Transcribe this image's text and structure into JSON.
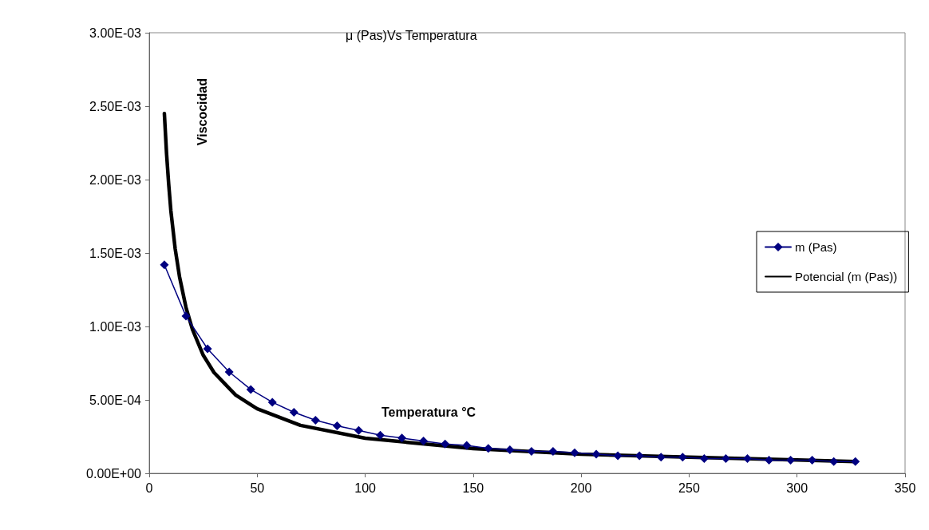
{
  "chart_data": {
    "type": "line",
    "title": "μ (Pas)Vs Temperatura",
    "xlabel": "Temperatura °C",
    "ylabel": "Viscocidad",
    "xlim": [
      0,
      350
    ],
    "xticks": [
      0,
      50,
      100,
      150,
      200,
      250,
      300,
      350
    ],
    "ylim": [
      0,
      0.003
    ],
    "yticks": [
      {
        "value": 0,
        "label": "0.00E+00"
      },
      {
        "value": 0.0005,
        "label": "5.00E-04"
      },
      {
        "value": 0.001,
        "label": "1.00E-03"
      },
      {
        "value": 0.0015,
        "label": "1.50E-03"
      },
      {
        "value": 0.002,
        "label": "2.00E-03"
      },
      {
        "value": 0.0025,
        "label": "2.50E-03"
      },
      {
        "value": 0.003,
        "label": "3.00E-03"
      }
    ],
    "grid": false,
    "legend": "right",
    "marker": "diamond",
    "line_style": "solid",
    "series": [
      {
        "name": "m (Pas)",
        "color": "#000080",
        "x": [
          7,
          17,
          27,
          37,
          47,
          57,
          67,
          77,
          87,
          97,
          107,
          117,
          127,
          137,
          147,
          157,
          167,
          177,
          187,
          197,
          207,
          217,
          227,
          237,
          247,
          257,
          267,
          277,
          287,
          297,
          307,
          317,
          327
        ],
        "values": [
          0.00142,
          0.00107,
          0.000848,
          0.00069,
          0.000571,
          0.000484,
          0.000416,
          0.000361,
          0.000323,
          0.000292,
          0.00026,
          0.00024,
          0.00022,
          0.0002,
          0.00019,
          0.00017,
          0.00016,
          0.00015,
          0.00015,
          0.00014,
          0.00013,
          0.00012,
          0.00012,
          0.00011,
          0.00011,
          0.0001,
          0.0001,
          0.0001,
          9e-05,
          9e-05,
          9e-05,
          8e-05,
          8e-05
        ]
      },
      {
        "name": "Potencial (m (Pas))",
        "color": "#000000",
        "marker": "none",
        "x": [
          7,
          8,
          9,
          10,
          12,
          14,
          17,
          20,
          25,
          30,
          40,
          50,
          70,
          100,
          150,
          200,
          250,
          327
        ],
        "values": [
          0.00245,
          0.00218,
          0.00197,
          0.00179,
          0.00153,
          0.00134,
          0.00113,
          0.00098,
          0.000804,
          0.000686,
          0.000533,
          0.000439,
          0.000327,
          0.000239,
          0.000168,
          0.00013,
          0.00011,
          8e-05
        ]
      }
    ]
  }
}
